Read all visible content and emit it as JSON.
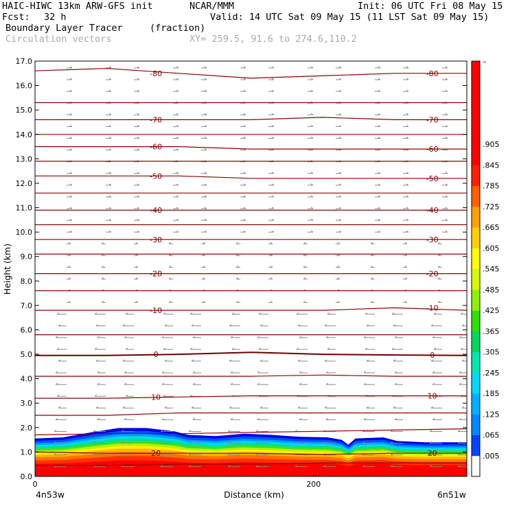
{
  "header": {
    "model": "HAIC-HIWC 13km ARW-GFS init",
    "org": "NCAR/MMM",
    "init": "Init: 06 UTC Fri 08 May 15",
    "fcst_label": "Fcst:",
    "fcst_value": "32 h",
    "valid": "Valid: 14 UTC Sat 09 May 15 (11 LST Sat 09 May 15)",
    "field": "Boundary Layer Tracer",
    "field_units": "(fraction)",
    "vectors": "Circulation vectors",
    "xy": "XY= 259.5, 91.6 to 274.6,110.2"
  },
  "chart_data": {
    "type": "heatmap",
    "xlabel": "Distance (km)",
    "ylabel": "Height (km)",
    "xlim": [
      0,
      310
    ],
    "ylim": [
      0,
      17
    ],
    "x_ticks": [
      "0",
      "200"
    ],
    "x_tick_values": [
      0,
      200
    ],
    "left_endpoint": "4n53w",
    "right_endpoint": "6n51w",
    "y_ticks": [
      "0.0",
      "1.0",
      "2.0",
      "3.0",
      "4.0",
      "5.0",
      "6.0",
      "7.0",
      "8.0",
      "9.0",
      "10.0",
      "11.0",
      "12.0",
      "13.0",
      "14.0",
      "15.0",
      "16.0",
      "17.0"
    ],
    "tracer_top_km": [
      [
        0,
        1.55
      ],
      [
        20,
        1.6
      ],
      [
        40,
        1.8
      ],
      [
        60,
        1.98
      ],
      [
        80,
        1.98
      ],
      [
        100,
        1.85
      ],
      [
        110,
        1.7
      ],
      [
        130,
        1.65
      ],
      [
        150,
        1.75
      ],
      [
        170,
        1.7
      ],
      [
        190,
        1.62
      ],
      [
        210,
        1.6
      ],
      [
        220,
        1.5
      ],
      [
        225,
        1.3
      ],
      [
        230,
        1.55
      ],
      [
        250,
        1.6
      ],
      [
        260,
        1.45
      ],
      [
        280,
        1.4
      ],
      [
        310,
        1.4
      ]
    ],
    "temperature_contours": [
      {
        "label": "-80",
        "y": [
          16.6,
          16.7,
          16.5,
          16.3,
          16.4,
          16.5,
          16.5
        ]
      },
      {
        "label": "",
        "y": [
          15.3,
          15.3,
          15.3,
          15.3,
          15.3,
          15.3,
          15.3
        ]
      },
      {
        "label": "-70",
        "y": [
          14.6,
          14.6,
          14.6,
          14.6,
          14.7,
          14.6,
          14.6
        ]
      },
      {
        "label": "",
        "y": [
          14.0,
          14.0,
          14.0,
          14.0,
          14.0,
          14.0,
          14.0
        ]
      },
      {
        "label": "-60",
        "y": [
          13.5,
          13.5,
          13.5,
          13.4,
          13.4,
          13.4,
          13.4
        ]
      },
      {
        "label": "",
        "y": [
          12.9,
          12.9,
          12.9,
          12.9,
          12.9,
          12.9,
          12.9
        ]
      },
      {
        "label": "-50",
        "y": [
          12.3,
          12.3,
          12.3,
          12.2,
          12.2,
          12.2,
          12.2
        ]
      },
      {
        "label": "",
        "y": [
          11.6,
          11.6,
          11.6,
          11.6,
          11.6,
          11.6,
          11.6
        ]
      },
      {
        "label": "-40",
        "y": [
          10.9,
          10.9,
          10.9,
          10.9,
          10.9,
          10.9,
          10.9
        ]
      },
      {
        "label": "",
        "y": [
          10.3,
          10.3,
          10.3,
          10.3,
          10.3,
          10.3,
          10.3
        ]
      },
      {
        "label": "-30",
        "y": [
          9.7,
          9.7,
          9.7,
          9.7,
          9.7,
          9.7,
          9.7
        ]
      },
      {
        "label": "",
        "y": [
          9.1,
          9.1,
          9.1,
          9.1,
          9.1,
          9.1,
          9.1
        ]
      },
      {
        "label": "-20",
        "y": [
          8.3,
          8.3,
          8.3,
          8.3,
          8.3,
          8.3,
          8.3
        ]
      },
      {
        "label": "",
        "y": [
          7.6,
          7.6,
          7.6,
          7.6,
          7.6,
          7.6,
          7.6
        ]
      },
      {
        "label": "-10",
        "y": [
          6.8,
          6.8,
          6.8,
          6.8,
          6.8,
          6.9,
          6.8
        ]
      },
      {
        "label": "",
        "y": [
          5.8,
          5.8,
          5.8,
          5.8,
          5.8,
          5.8,
          5.8
        ]
      },
      {
        "label": "0",
        "y": [
          4.95,
          4.95,
          5.0,
          5.08,
          5.0,
          4.97,
          4.95
        ]
      },
      {
        "label": "",
        "y": [
          4.1,
          4.1,
          4.1,
          4.1,
          4.15,
          4.1,
          4.1
        ]
      },
      {
        "label": "10",
        "y": [
          3.2,
          3.2,
          3.25,
          3.3,
          3.3,
          3.3,
          3.3
        ]
      },
      {
        "label": "",
        "y": [
          2.5,
          2.5,
          2.6,
          2.6,
          2.6,
          2.6,
          2.6
        ]
      },
      {
        "label": "",
        "y": [
          1.7,
          1.75,
          1.75,
          1.8,
          1.85,
          1.9,
          1.95
        ]
      },
      {
        "label": "20",
        "y": [
          1.0,
          0.95,
          0.95,
          0.95,
          0.9,
          0.95,
          0.95
        ]
      },
      {
        "label": "",
        "y": [
          0.45,
          0.45,
          0.5,
          0.5,
          0.55,
          0.55,
          0.55
        ]
      }
    ],
    "colorbar": {
      "ticks": [
        ".005",
        ".065",
        ".125",
        ".185",
        ".245",
        ".305",
        ".365",
        ".425",
        ".485",
        ".545",
        ".605",
        ".665",
        ".725",
        ".785",
        ".845",
        ".905"
      ],
      "colors": [
        "#ffffff",
        "#0044ff",
        "#0088ff",
        "#00b0ff",
        "#00d8ff",
        "#00e8b0",
        "#00d860",
        "#30e000",
        "#90f000",
        "#d8f800",
        "#ffff00",
        "#ffd000",
        "#ffa000",
        "#ff6000",
        "#ff2000",
        "#ff0000",
        "#ff0000",
        "#ff0000",
        "#ff0000",
        "#ff0000"
      ]
    }
  }
}
